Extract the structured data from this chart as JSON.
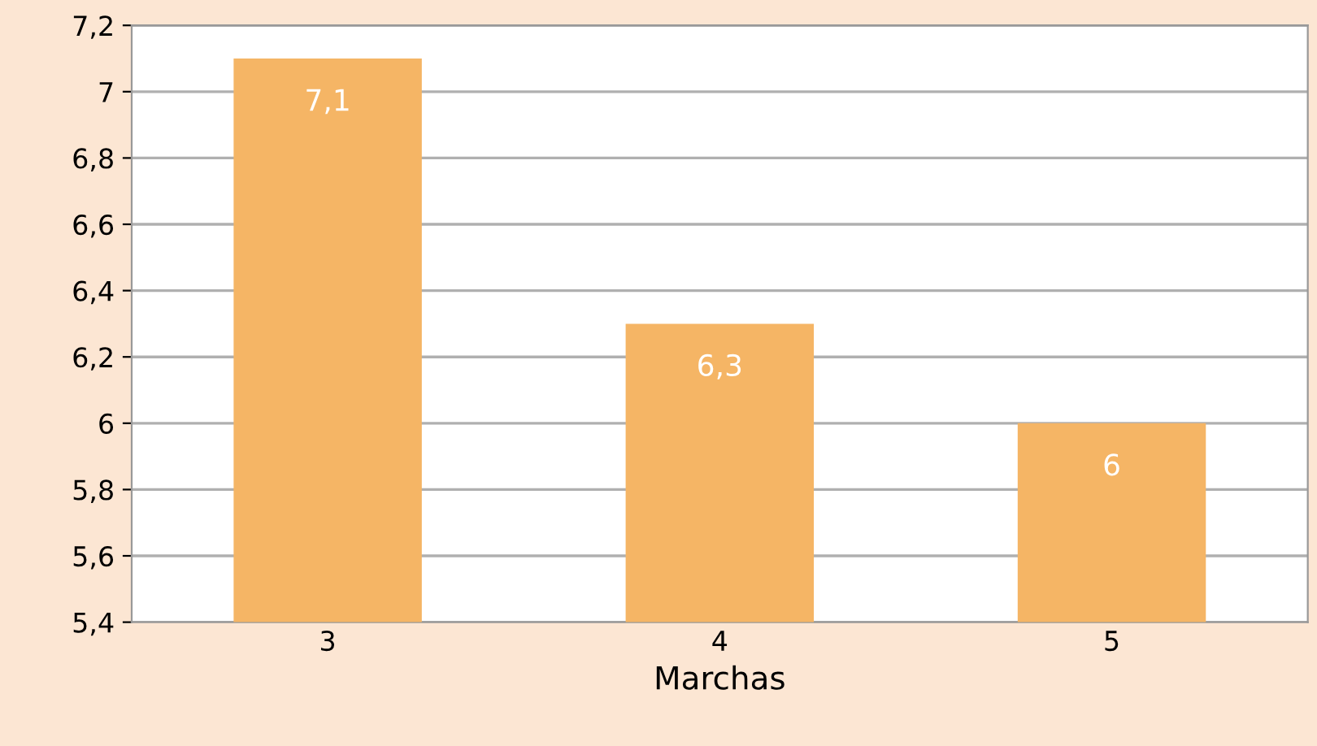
{
  "chart_data": {
    "type": "bar",
    "xlabel": "Marchas",
    "categories": [
      "3",
      "4",
      "5"
    ],
    "values": [
      7.1,
      6.3,
      6
    ],
    "value_labels": [
      "7,1",
      "6,3",
      "6"
    ],
    "color": "#f5b565",
    "ylim": [
      5.4,
      7.2
    ],
    "yticks": [
      {
        "value": 5.4,
        "label": "5,4"
      },
      {
        "value": 5.6,
        "label": "5,6"
      },
      {
        "value": 5.8,
        "label": "5,8"
      },
      {
        "value": 6,
        "label": "6"
      },
      {
        "value": 6.2,
        "label": "6,2"
      },
      {
        "value": 6.4,
        "label": "6,4"
      },
      {
        "value": 6.6,
        "label": "6,6"
      },
      {
        "value": 6.8,
        "label": "6,8"
      },
      {
        "value": 7,
        "label": "7"
      },
      {
        "value": 7.2,
        "label": "7,2"
      }
    ],
    "grid": "y"
  }
}
